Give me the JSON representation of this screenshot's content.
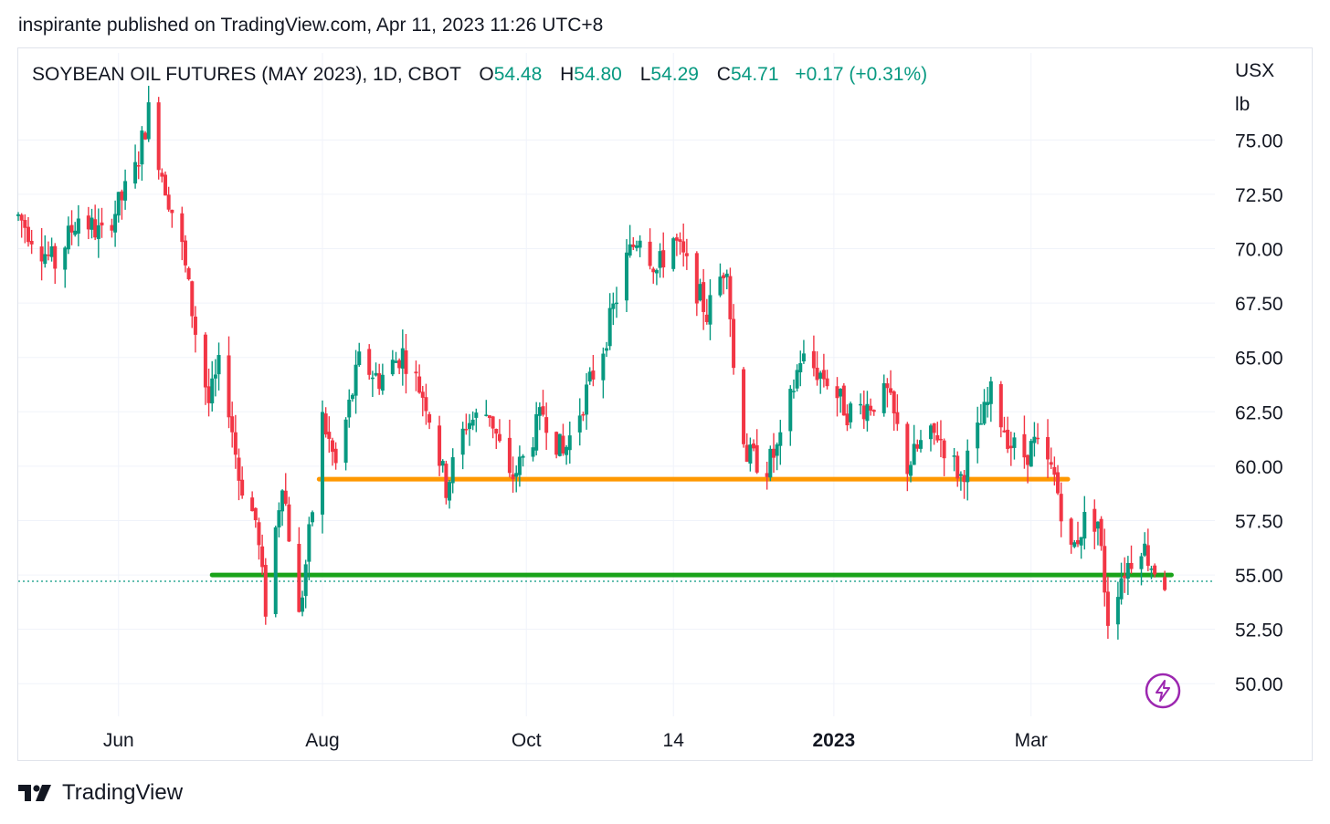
{
  "header": {
    "published_text": "inspirante published on TradingView.com, Apr 11, 2023 11:26 UTC+8"
  },
  "legend": {
    "symbol": "SOYBEAN OIL FUTURES (MAY 2023), 1D, CBOT",
    "open_label": "O",
    "open": "54.48",
    "high_label": "H",
    "high": "54.80",
    "low_label": "L",
    "low": "54.29",
    "close_label": "C",
    "close": "54.71",
    "change": "+0.17 (+0.31%)"
  },
  "price_scale": {
    "unit_line1": "USX",
    "unit_line2": "lb"
  },
  "footer": {
    "brand": "TradingView"
  },
  "colors": {
    "up": "#089981",
    "down": "#f23645",
    "resistance_line": "#ff9800",
    "support_line": "#1aa31a",
    "grid": "#f0f3fa",
    "text": "#131722",
    "bolt": "#9c27b0"
  },
  "chart_data": {
    "type": "candlestick",
    "y_ticks": [
      "75.00",
      "72.50",
      "70.00",
      "67.50",
      "65.00",
      "62.50",
      "60.00",
      "57.50",
      "55.00",
      "52.50",
      "50.00"
    ],
    "x_ticks": [
      {
        "label": "Jun",
        "date": "2022-06-01",
        "bold": false
      },
      {
        "label": "Aug",
        "date": "2022-08-01",
        "bold": false
      },
      {
        "label": "Oct",
        "date": "2022-10-01",
        "bold": false
      },
      {
        "label": "14",
        "date": "2022-11-14",
        "bold": false
      },
      {
        "label": "2023",
        "date": "2023-01-01",
        "bold": true
      },
      {
        "label": "Mar",
        "date": "2023-03-01",
        "bold": false
      }
    ],
    "x_range": [
      "2022-05-02",
      "2023-04-25"
    ],
    "y_range": [
      48.5,
      79.0
    ],
    "last_price": 54.71,
    "horizontal_lines": [
      {
        "name": "resistance",
        "price": 59.4,
        "start": "2022-07-31",
        "end": "2023-03-12"
      },
      {
        "name": "support",
        "price": 55.0,
        "start": "2022-06-29",
        "end": "2023-04-12"
      }
    ],
    "anchors": [
      [
        "2022-05-02",
        71.5
      ],
      [
        "2022-05-09",
        70.0
      ],
      [
        "2022-05-13",
        69.3
      ],
      [
        "2022-05-20",
        71.5
      ],
      [
        "2022-05-27",
        70.6
      ],
      [
        "2022-06-02",
        72.3
      ],
      [
        "2022-06-06",
        73.6
      ],
      [
        "2022-06-10",
        76.3
      ],
      [
        "2022-06-14",
        73.5
      ],
      [
        "2022-06-20",
        70.0
      ],
      [
        "2022-06-24",
        66.2
      ],
      [
        "2022-06-28",
        62.9
      ],
      [
        "2022-07-02",
        65.0
      ],
      [
        "2022-07-07",
        59.5
      ],
      [
        "2022-07-12",
        57.5
      ],
      [
        "2022-07-15",
        53.5
      ],
      [
        "2022-07-20",
        59.5
      ],
      [
        "2022-07-25",
        53.0
      ],
      [
        "2022-07-29",
        58.0
      ],
      [
        "2022-08-01",
        62.2
      ],
      [
        "2022-08-05",
        60.0
      ],
      [
        "2022-08-12",
        64.8
      ],
      [
        "2022-08-18",
        64.0
      ],
      [
        "2022-08-25",
        65.2
      ],
      [
        "2022-09-01",
        63.0
      ],
      [
        "2022-09-07",
        59.0
      ],
      [
        "2022-09-13",
        62.0
      ],
      [
        "2022-09-20",
        62.5
      ],
      [
        "2022-09-26",
        59.3
      ],
      [
        "2022-09-30",
        60.3
      ],
      [
        "2022-10-06",
        62.5
      ],
      [
        "2022-10-12",
        60.5
      ],
      [
        "2022-10-18",
        63.0
      ],
      [
        "2022-10-24",
        65.5
      ],
      [
        "2022-10-31",
        69.5
      ],
      [
        "2022-11-04",
        70.8
      ],
      [
        "2022-11-09",
        69.0
      ],
      [
        "2022-11-14",
        70.5
      ],
      [
        "2022-11-20",
        68.5
      ],
      [
        "2022-11-24",
        67.0
      ],
      [
        "2022-11-30",
        69.5
      ],
      [
        "2022-12-02",
        64.5
      ],
      [
        "2022-12-06",
        60.5
      ],
      [
        "2022-12-12",
        60.0
      ],
      [
        "2022-12-16",
        61.0
      ],
      [
        "2022-12-22",
        65.0
      ],
      [
        "2022-12-30",
        64.0
      ],
      [
        "2023-01-05",
        62.5
      ],
      [
        "2023-01-11",
        62.8
      ],
      [
        "2023-01-17",
        63.3
      ],
      [
        "2023-01-23",
        60.0
      ],
      [
        "2023-01-27",
        61.0
      ],
      [
        "2023-02-01",
        61.5
      ],
      [
        "2023-02-08",
        59.5
      ],
      [
        "2023-02-13",
        61.5
      ],
      [
        "2023-02-17",
        63.3
      ],
      [
        "2023-02-23",
        61.0
      ],
      [
        "2023-02-27",
        60.5
      ],
      [
        "2023-03-02",
        61.0
      ],
      [
        "2023-03-08",
        59.5
      ],
      [
        "2023-03-13",
        56.0
      ],
      [
        "2023-03-17",
        57.5
      ],
      [
        "2023-03-21",
        57.5
      ],
      [
        "2023-03-24",
        53.0
      ],
      [
        "2023-03-28",
        55.0
      ],
      [
        "2023-04-03",
        56.5
      ],
      [
        "2023-04-06",
        55.5
      ],
      [
        "2023-04-10",
        54.71
      ]
    ]
  }
}
